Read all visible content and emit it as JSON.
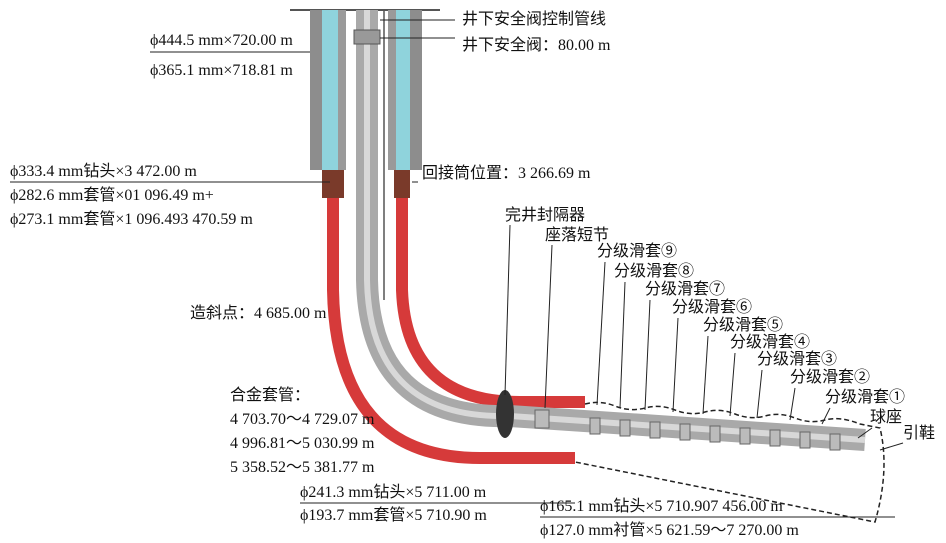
{
  "top_labels": [
    "井下安全阀控制管线",
    "井下安全阀：80.00 m"
  ],
  "casing_labels": [
    "ϕ444.5 mm×720.00 m",
    "ϕ365.1 mm×718.81 m",
    "ϕ333.4 mm钻头×3 472.00 m",
    "ϕ282.6 mm套管×01 096.49 m+",
    "ϕ273.1 mm套管×1 096.493 470.59 m"
  ],
  "tie_back": "回接筒位置：3 266.69 m",
  "packer": "完井封隔器",
  "landing_nipple": "座落短节",
  "sleeves": [
    "分级滑套⑨",
    "分级滑套⑧",
    "分级滑套⑦",
    "分级滑套⑥",
    "分级滑套⑤",
    "分级滑套④",
    "分级滑套③",
    "分级滑套②",
    "分级滑套①"
  ],
  "ball_seat": "球座",
  "guide_shoe": "引鞋",
  "kickoff": "造斜点：4 685.00 m",
  "alloy_casing": {
    "title": "合金套管：",
    "intervals": [
      "4 703.70～4 729.07 m",
      "4 996.81～5 030.99 m",
      "5 358.52～5 381.77 m"
    ]
  },
  "bottom_labels": [
    "ϕ241.3 mm钻头×5 711.00 m",
    "ϕ193.7 mm套管×5 710.90 m",
    "ϕ165.1 mm钻头×5 710.907 456.00 m",
    "ϕ127.0 mm衬管×5 621.59～7 270.00 m"
  ]
}
